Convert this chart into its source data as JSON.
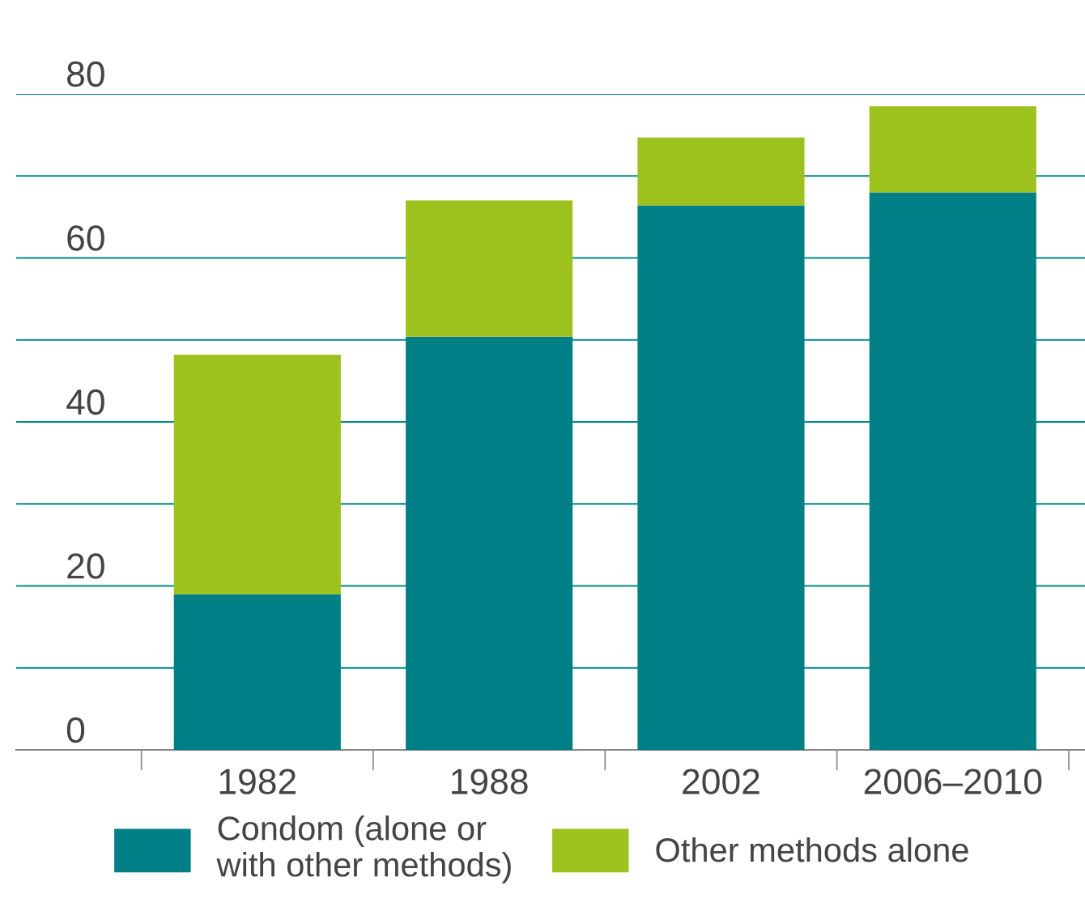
{
  "chart_data": {
    "type": "bar",
    "stacked": true,
    "categories": [
      "1982",
      "1988",
      "2002",
      "2006–2010"
    ],
    "series": [
      {
        "name": "Condom (alone or\nwith other methods)",
        "color": "#007f86",
        "values": [
          19,
          50.4,
          66.4,
          68
        ]
      },
      {
        "name": "Other methods alone",
        "color": "#9dc21d",
        "values": [
          29.2,
          16.6,
          8.3,
          10.5
        ]
      }
    ],
    "ylim": [
      0,
      80
    ],
    "yticks": [
      0,
      {
        "value": 10,
        "label": null
      },
      20,
      {
        "value": 30,
        "label": null
      },
      40,
      {
        "value": 50,
        "label": null
      },
      60,
      {
        "value": 70,
        "label": null
      },
      80
    ],
    "grid": "y",
    "legend": "bottom"
  }
}
